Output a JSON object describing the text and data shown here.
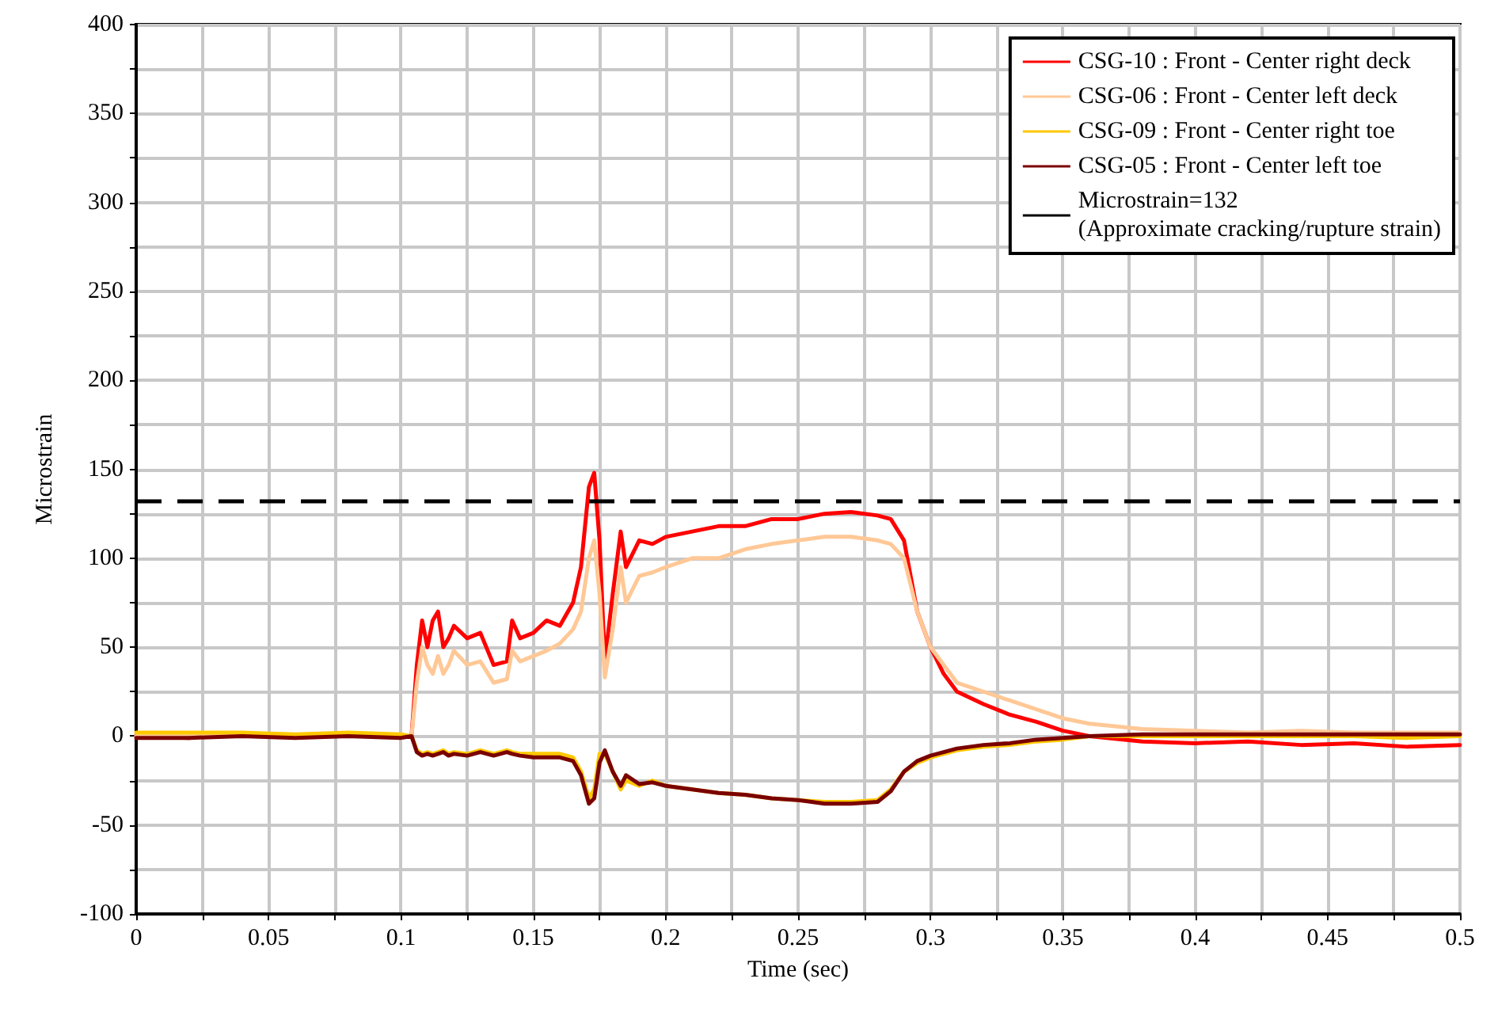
{
  "chart_data": {
    "type": "line",
    "xlabel": "Time (sec)",
    "ylabel": "Microstrain",
    "x": [
      0,
      0.02,
      0.04,
      0.06,
      0.08,
      0.1,
      0.104,
      0.106,
      0.108,
      0.11,
      0.112,
      0.114,
      0.116,
      0.118,
      0.12,
      0.125,
      0.13,
      0.135,
      0.14,
      0.142,
      0.145,
      0.15,
      0.155,
      0.16,
      0.165,
      0.168,
      0.171,
      0.173,
      0.175,
      0.177,
      0.18,
      0.183,
      0.185,
      0.19,
      0.195,
      0.2,
      0.21,
      0.22,
      0.23,
      0.24,
      0.25,
      0.26,
      0.27,
      0.28,
      0.285,
      0.29,
      0.295,
      0.3,
      0.305,
      0.31,
      0.32,
      0.33,
      0.34,
      0.35,
      0.36,
      0.38,
      0.4,
      0.42,
      0.44,
      0.46,
      0.48,
      0.5
    ],
    "series": [
      {
        "name": "CSG-10 : Front - Center right deck",
        "color": "#ff0000",
        "values": [
          0,
          -1,
          1,
          0,
          0,
          0,
          0,
          40,
          65,
          50,
          65,
          70,
          50,
          55,
          62,
          55,
          58,
          40,
          42,
          65,
          55,
          58,
          65,
          62,
          75,
          95,
          140,
          148,
          110,
          42,
          80,
          115,
          95,
          110,
          108,
          112,
          115,
          118,
          118,
          122,
          122,
          125,
          126,
          124,
          122,
          110,
          70,
          50,
          35,
          25,
          18,
          12,
          8,
          3,
          0,
          -3,
          -4,
          -3,
          -5,
          -4,
          -6,
          -5
        ]
      },
      {
        "name": "CSG-06 : Front - Center left deck",
        "color": "#ffc896",
        "values": [
          0,
          0,
          1,
          0,
          1,
          0,
          0,
          30,
          50,
          40,
          35,
          45,
          35,
          40,
          48,
          40,
          42,
          30,
          32,
          48,
          42,
          45,
          48,
          52,
          60,
          70,
          100,
          110,
          80,
          33,
          60,
          95,
          75,
          90,
          92,
          95,
          100,
          100,
          105,
          108,
          110,
          112,
          112,
          110,
          108,
          100,
          70,
          50,
          40,
          30,
          25,
          20,
          15,
          10,
          7,
          4,
          3,
          2,
          3,
          2,
          2,
          2
        ]
      },
      {
        "name": "CSG-09 : Front - Center right toe",
        "color": "#ffc800",
        "values": [
          2,
          2,
          2,
          1,
          2,
          1,
          0,
          -8,
          -10,
          -9,
          -10,
          -9,
          -8,
          -10,
          -9,
          -10,
          -8,
          -10,
          -8,
          -9,
          -10,
          -10,
          -10,
          -10,
          -12,
          -20,
          -35,
          -30,
          -10,
          -10,
          -20,
          -30,
          -25,
          -28,
          -25,
          -28,
          -30,
          -32,
          -33,
          -35,
          -36,
          -37,
          -37,
          -36,
          -30,
          -20,
          -15,
          -12,
          -10,
          -8,
          -6,
          -5,
          -3,
          -2,
          0,
          0,
          0,
          0,
          0,
          0,
          -1,
          0
        ]
      },
      {
        "name": "CSG-05 : Front - Center left toe",
        "color": "#7a0000",
        "values": [
          -1,
          -1,
          0,
          -1,
          0,
          -1,
          0,
          -9,
          -11,
          -10,
          -11,
          -10,
          -9,
          -11,
          -10,
          -11,
          -9,
          -11,
          -9,
          -10,
          -11,
          -12,
          -12,
          -12,
          -14,
          -22,
          -38,
          -35,
          -15,
          -8,
          -20,
          -28,
          -22,
          -27,
          -26,
          -28,
          -30,
          -32,
          -33,
          -35,
          -36,
          -38,
          -38,
          -37,
          -31,
          -20,
          -14,
          -11,
          -9,
          -7,
          -5,
          -4,
          -2,
          -1,
          0,
          1,
          1,
          1,
          1,
          1,
          1,
          1
        ]
      }
    ],
    "ref_lines": [
      {
        "axis": "y",
        "value": 132,
        "label": "Microstrain=132\n(Approximate cracking/rupture strain)",
        "color": "#000000",
        "line_style": "dashed"
      }
    ],
    "xlim": [
      0,
      0.5
    ],
    "ylim": [
      -100,
      400
    ],
    "xticks": [
      0,
      {
        "value": 0.025,
        "label": null
      },
      0.05,
      {
        "value": 0.075,
        "label": null
      },
      0.1,
      {
        "value": 0.125,
        "label": null
      },
      0.15,
      {
        "value": 0.175,
        "label": null
      },
      0.2,
      {
        "value": 0.225,
        "label": null
      },
      0.25,
      {
        "value": 0.275,
        "label": null
      },
      0.3,
      {
        "value": 0.325,
        "label": null
      },
      0.35,
      {
        "value": 0.375,
        "label": null
      },
      0.4,
      {
        "value": 0.425,
        "label": null
      },
      0.45,
      {
        "value": 0.475,
        "label": null
      },
      0.5
    ],
    "yticks": [
      -100,
      {
        "value": -75,
        "label": null
      },
      -50,
      {
        "value": -25,
        "label": null
      },
      0,
      {
        "value": 25,
        "label": null
      },
      50,
      {
        "value": 75,
        "label": null
      },
      100,
      {
        "value": 125,
        "label": null
      },
      150,
      {
        "value": 175,
        "label": null
      },
      200,
      {
        "value": 225,
        "label": null
      },
      250,
      {
        "value": 275,
        "label": null
      },
      300,
      {
        "value": 325,
        "label": null
      },
      350,
      {
        "value": 375,
        "label": null
      },
      400
    ],
    "grid": true,
    "legend": "top right",
    "marker": "none",
    "line_style": "solid"
  }
}
